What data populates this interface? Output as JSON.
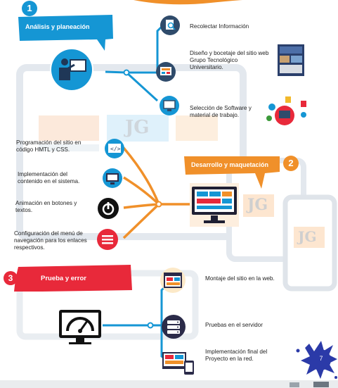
{
  "colors": {
    "blue": "#1596d4",
    "orange": "#f0902a",
    "red": "#e8293a",
    "navy": "#2f4b6b",
    "frame": "#e3e8ee",
    "ink": "#2b2b49"
  },
  "sections": {
    "analysis": {
      "number": "1",
      "title": "Análisis y planeación"
    },
    "development": {
      "number": "2",
      "title": "Desarrollo y maquetación"
    },
    "testing": {
      "number": "3",
      "title": "Prueba y error"
    }
  },
  "analysis_items": [
    {
      "text": "Recolectar Información",
      "icon": "search-document-icon"
    },
    {
      "text": "Diseño y bocetaje del sitio web Grupo Tecnológico Universitario.",
      "icon": "layout-sketch-icon"
    },
    {
      "text": "Selección de Software y material de trabajo.",
      "icon": "computer-monitor-icon"
    }
  ],
  "development_items": [
    {
      "text": "Programación del sitio en código HMTL y CSS.",
      "icon": "code-icon"
    },
    {
      "text": "Implementación del contenido en el sistema.",
      "icon": "monitor-icon"
    },
    {
      "text": "Animación en botones y textos.",
      "icon": "power-button-icon"
    },
    {
      "text": "Configuración del menú de navegación para los enlaces respectivos.",
      "icon": "menu-icon"
    }
  ],
  "testing_items": [
    {
      "text": "Montaje del sitio en la web.",
      "icon": "web-browser-icon"
    },
    {
      "text": "Pruebas en el servidor",
      "icon": "server-icon"
    },
    {
      "text": "Implementación final del Proyecto en la red.",
      "icon": "devices-icon"
    }
  ],
  "watermark": "JG",
  "page_number": "7"
}
